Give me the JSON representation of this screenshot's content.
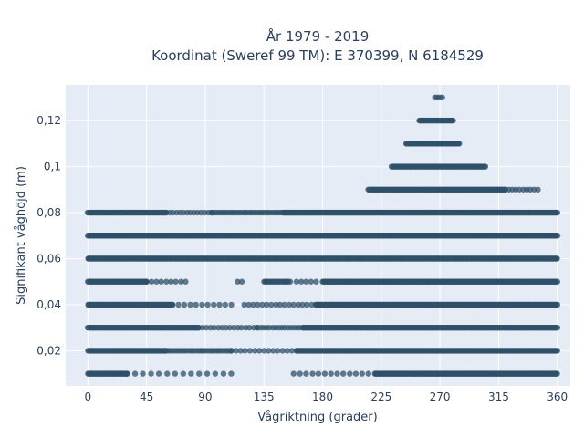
{
  "chart_data": {
    "type": "scatter",
    "title_lines": [
      "År 1979 - 2019",
      "Koordinat (Sweref 99 TM): E 370399, N 6184529"
    ],
    "xlabel": "Vågriktning (grader)",
    "ylabel": "Signifikant våghöjd (m)",
    "xlim": [
      -17,
      370
    ],
    "ylim": [
      0.0047,
      0.1355
    ],
    "x_ticks": [
      0,
      45,
      90,
      135,
      180,
      225,
      270,
      315,
      360
    ],
    "x_tick_labels": [
      "0",
      "45",
      "90",
      "135",
      "180",
      "225",
      "270",
      "315",
      "360"
    ],
    "y_ticks": [
      0.02,
      0.04,
      0.06,
      0.08,
      0.1,
      0.12
    ],
    "y_tick_labels": [
      "0,02",
      "0,04",
      "0,06",
      "0,08",
      "0,1",
      "0,12"
    ],
    "grid": true,
    "marker_color": "#2f5068",
    "plot_bgcolor": "#e5ecf6",
    "levels": [
      {
        "y": 0.01,
        "segments": [
          [
            0,
            30,
            1.5
          ],
          [
            30,
            110,
            0.18
          ],
          [
            158,
            215,
            0.22
          ],
          [
            220,
            360,
            1.6
          ]
        ]
      },
      {
        "y": 0.02,
        "segments": [
          [
            0,
            60,
            1.5
          ],
          [
            60,
            110,
            0.55
          ],
          [
            110,
            160,
            0.3
          ],
          [
            160,
            360,
            1.6
          ]
        ]
      },
      {
        "y": 0.03,
        "segments": [
          [
            0,
            85,
            1.5
          ],
          [
            85,
            130,
            0.35
          ],
          [
            130,
            165,
            0.45
          ],
          [
            165,
            360,
            1.6
          ]
        ]
      },
      {
        "y": 0.04,
        "segments": [
          [
            0,
            65,
            1.5
          ],
          [
            65,
            110,
            0.25
          ],
          [
            120,
            175,
            0.3
          ],
          [
            175,
            360,
            1.6
          ]
        ]
      },
      {
        "y": 0.05,
        "segments": [
          [
            0,
            45,
            1.4
          ],
          [
            45,
            75,
            0.3
          ],
          [
            115,
            118,
            0.5
          ],
          [
            135,
            155,
            1.0
          ],
          [
            160,
            175,
            0.3
          ],
          [
            180,
            360,
            1.6
          ]
        ]
      },
      {
        "y": 0.06,
        "segments": [
          [
            0,
            360,
            2.0
          ]
        ]
      },
      {
        "y": 0.07,
        "segments": [
          [
            0,
            360,
            2.5
          ]
        ]
      },
      {
        "y": 0.08,
        "segments": [
          [
            0,
            60,
            1.5
          ],
          [
            60,
            95,
            0.4
          ],
          [
            95,
            150,
            0.6
          ],
          [
            150,
            360,
            1.8
          ]
        ]
      },
      {
        "y": 0.09,
        "segments": [
          [
            215,
            320,
            1.4
          ],
          [
            320,
            345,
            0.4
          ]
        ]
      },
      {
        "y": 0.1,
        "segments": [
          [
            233,
            305,
            1.4
          ]
        ]
      },
      {
        "y": 0.11,
        "segments": [
          [
            244,
            285,
            1.4
          ]
        ]
      },
      {
        "y": 0.12,
        "segments": [
          [
            254,
            280,
            1.4
          ]
        ]
      },
      {
        "y": 0.13,
        "segments": [
          [
            266,
            272,
            0.6
          ]
        ]
      }
    ]
  }
}
